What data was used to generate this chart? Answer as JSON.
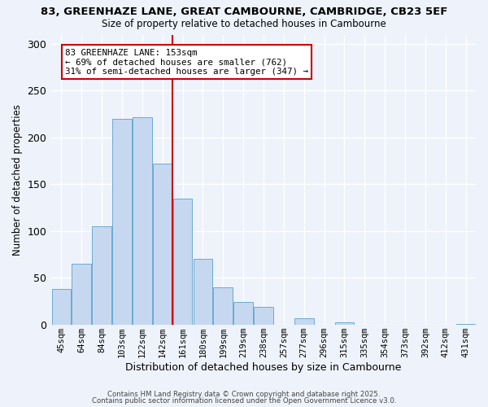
{
  "title": "83, GREENHAZE LANE, GREAT CAMBOURNE, CAMBRIDGE, CB23 5EF",
  "subtitle": "Size of property relative to detached houses in Cambourne",
  "xlabel": "Distribution of detached houses by size in Cambourne",
  "ylabel": "Number of detached properties",
  "bar_labels": [
    "45sqm",
    "64sqm",
    "84sqm",
    "103sqm",
    "122sqm",
    "142sqm",
    "161sqm",
    "180sqm",
    "199sqm",
    "219sqm",
    "238sqm",
    "257sqm",
    "277sqm",
    "296sqm",
    "315sqm",
    "335sqm",
    "354sqm",
    "373sqm",
    "392sqm",
    "412sqm",
    "431sqm"
  ],
  "bar_values": [
    38,
    65,
    105,
    220,
    222,
    172,
    135,
    70,
    40,
    24,
    19,
    0,
    7,
    0,
    2,
    0,
    0,
    0,
    0,
    0,
    1
  ],
  "bar_color": "#c5d8f0",
  "bar_edgecolor": "#6aabd2",
  "background_color": "#eef2fb",
  "grid_color": "#ffffff",
  "property_line_color": "#cc0000",
  "annotation_text": "83 GREENHAZE LANE: 153sqm\n← 69% of detached houses are smaller (762)\n31% of semi-detached houses are larger (347) →",
  "annotation_box_color": "#ffffff",
  "annotation_box_edgecolor": "#cc0000",
  "ylim": [
    0,
    310
  ],
  "yticks": [
    0,
    50,
    100,
    150,
    200,
    250,
    300
  ],
  "footer_line1": "Contains HM Land Registry data © Crown copyright and database right 2025.",
  "footer_line2": "Contains public sector information licensed under the Open Government Licence v3.0."
}
